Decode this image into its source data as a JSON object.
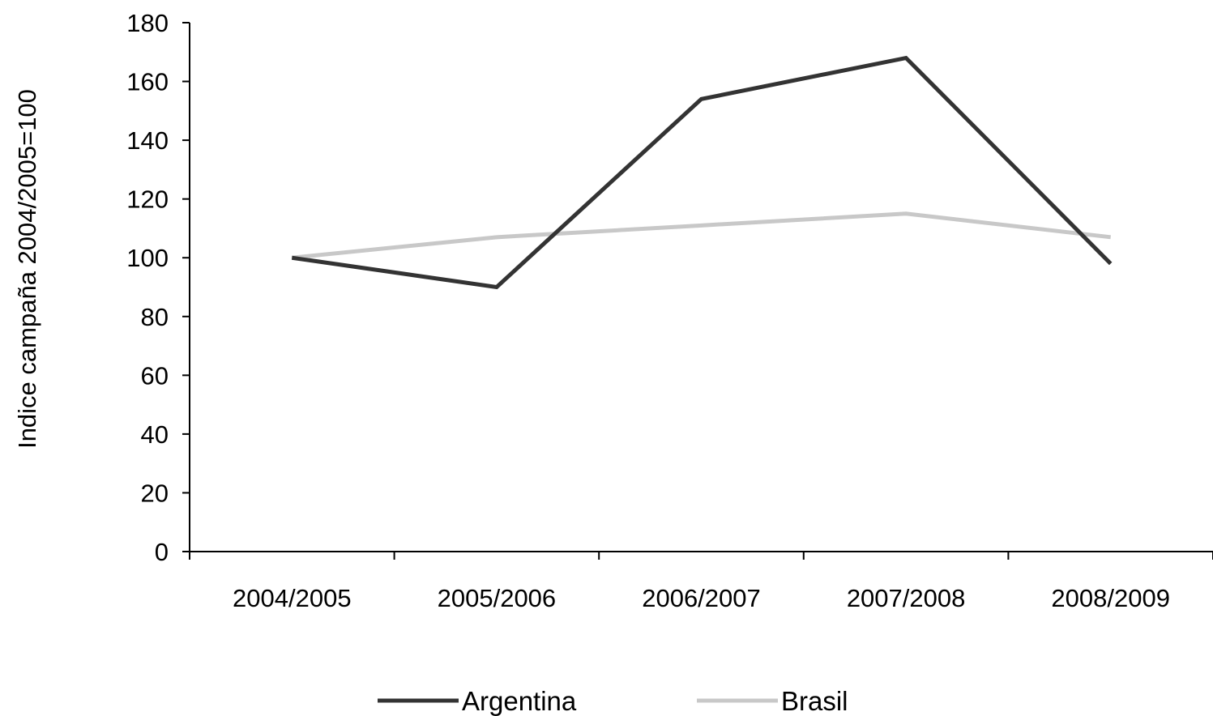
{
  "chart_data": {
    "type": "line",
    "title": "",
    "xlabel": "",
    "ylabel": "Indice campaña 2004/2005=100",
    "categories": [
      "2004/2005",
      "2005/2006",
      "2006/2007",
      "2007/2008",
      "2008/2009"
    ],
    "ylim": [
      0,
      180
    ],
    "yticks": [
      0,
      20,
      40,
      60,
      80,
      100,
      120,
      140,
      160,
      180
    ],
    "grid": false,
    "legend_position": "bottom",
    "series": [
      {
        "name": "Argentina",
        "color": "#333333",
        "values": [
          100,
          90,
          154,
          168,
          98
        ]
      },
      {
        "name": "Brasil",
        "color": "#c8c8c8",
        "values": [
          100,
          107,
          111,
          115,
          107
        ]
      }
    ]
  }
}
